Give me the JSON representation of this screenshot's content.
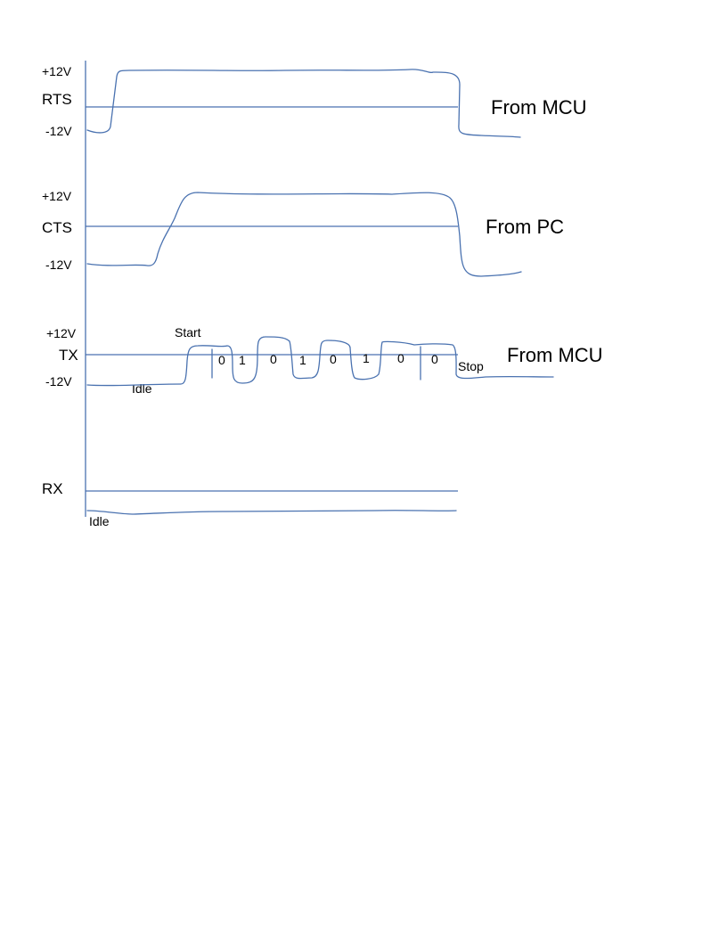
{
  "colors": {
    "line": "#4a72b0",
    "text": "#000000",
    "background": "#ffffff"
  },
  "signals": {
    "rts": {
      "name": "RTS",
      "high_level": "+12V",
      "low_level": "-12V",
      "source": "From MCU"
    },
    "cts": {
      "name": "CTS",
      "high_level": "+12V",
      "low_level": "-12V",
      "source": "From PC"
    },
    "tx": {
      "name": "TX",
      "high_level": "+12V",
      "low_level": "-12V",
      "source": "From MCU",
      "idle_label": "Idle",
      "start_label": "Start",
      "stop_label": "Stop",
      "bits": [
        "0",
        "1",
        "0",
        "1",
        "0",
        "1",
        "0",
        "0"
      ]
    },
    "rx": {
      "name": "RX",
      "idle_label": "Idle"
    }
  }
}
